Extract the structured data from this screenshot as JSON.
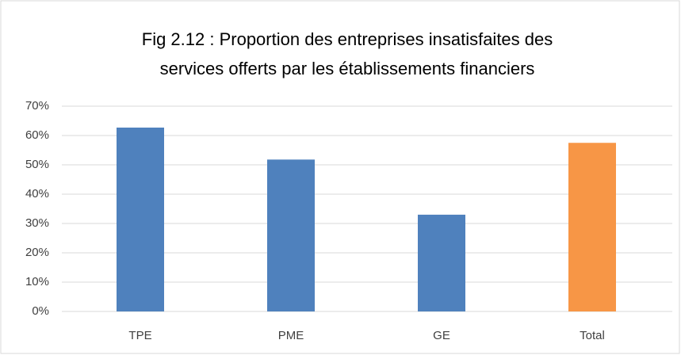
{
  "chart_data": {
    "type": "bar",
    "title": [
      "Fig 2.12 : Proportion des entreprises insatisfaites des",
      "services offerts par les établissements financiers"
    ],
    "categories": [
      "TPE",
      "PME",
      "GE",
      "Total"
    ],
    "values": [
      62.7,
      51.8,
      33,
      57.5
    ],
    "colors": [
      "#4f81bd",
      "#4f81bd",
      "#4f81bd",
      "#f79646"
    ],
    "ylim": [
      0,
      70
    ],
    "yticks": [
      {
        "value": 0,
        "label": "0%"
      },
      {
        "value": 10,
        "label": "10%"
      },
      {
        "value": 20,
        "label": "20%"
      },
      {
        "value": 30,
        "label": "30%"
      },
      {
        "value": 40,
        "label": "40%"
      },
      {
        "value": 50,
        "label": "50%"
      },
      {
        "value": 60,
        "label": "60%"
      },
      {
        "value": 70,
        "label": "70%"
      }
    ],
    "grid": true
  }
}
